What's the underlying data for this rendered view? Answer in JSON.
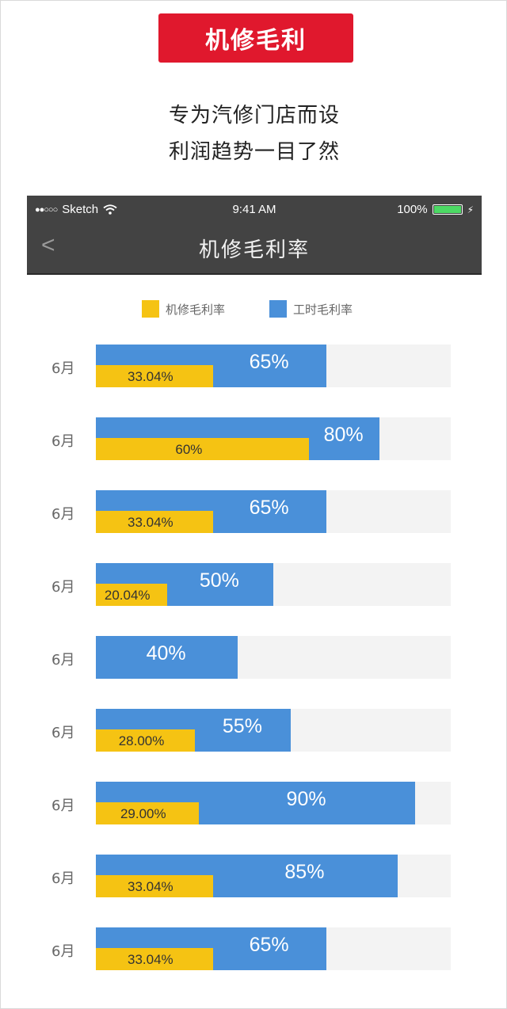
{
  "header": {
    "banner": "机修毛利",
    "tagline_1": "专为汽修门店而设",
    "tagline_2": "利润趋势一目了然"
  },
  "status_bar": {
    "carrier": "Sketch",
    "time": "9:41 AM",
    "battery": "100%"
  },
  "nav": {
    "title": "机修毛利率",
    "back": "<"
  },
  "colors": {
    "banner": "#e0182d",
    "repair_margin": "#f5c313",
    "labor_margin": "#4a90d9",
    "nav_bar": "#434343"
  },
  "chart_data": {
    "type": "bar",
    "orientation": "horizontal",
    "legend": [
      "机修毛利率",
      "工时毛利率"
    ],
    "categories": [
      "6月",
      "6月",
      "6月",
      "6月",
      "6月",
      "6月",
      "6月",
      "6月",
      "6月"
    ],
    "series": [
      {
        "name": "工时毛利率",
        "values": [
          65,
          80,
          65,
          50,
          40,
          55,
          90,
          85,
          65
        ],
        "labels": [
          "65%",
          "80%",
          "65%",
          "50%",
          "40%",
          "55%",
          "90%",
          "85%",
          "65%"
        ]
      },
      {
        "name": "机修毛利率",
        "values": [
          33.04,
          60,
          33.04,
          20.04,
          null,
          28.0,
          29.0,
          33.04,
          33.04
        ],
        "labels": [
          "33.04%",
          "60%",
          "33.04%",
          "20.04%",
          "",
          "28.00%",
          "29.00%",
          "33.04%",
          "33.04%"
        ]
      }
    ],
    "xlim": [
      0,
      100
    ]
  }
}
